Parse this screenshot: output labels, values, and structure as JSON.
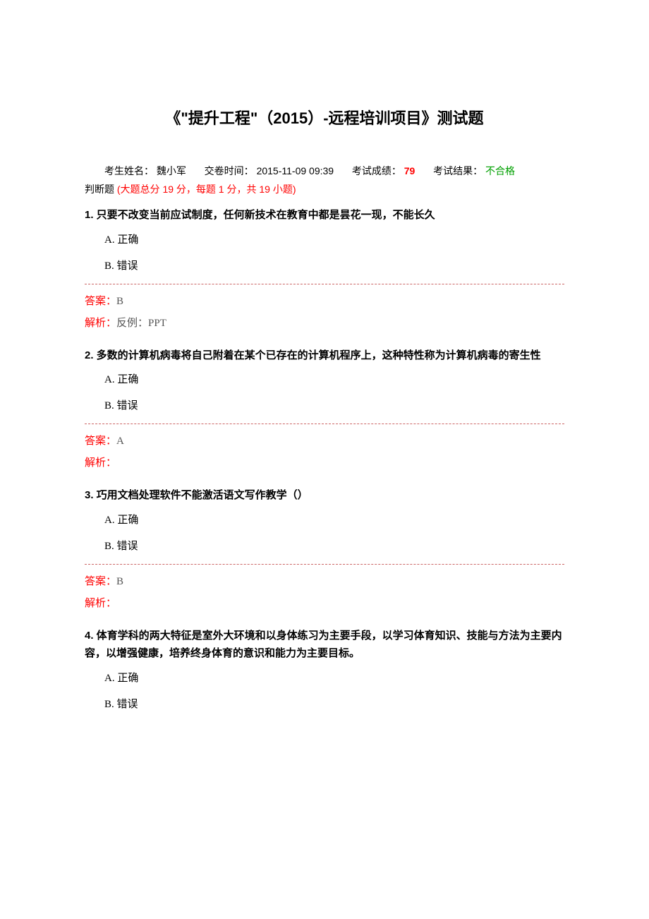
{
  "title": "《\"提升工程\"（2015）-远程培训项目》测试题",
  "meta": {
    "name_label": "考生姓名：",
    "name_value": "魏小军",
    "submit_label": "交卷时间：",
    "submit_value": "2015-11-09 09:39",
    "score_label": "考试成绩：",
    "score_value": "79",
    "result_label": "考试结果：",
    "result_value": "不合格"
  },
  "section": {
    "black": "判断题 ",
    "red": "(大题总分 19 分，每题 1 分，共 19 小题)"
  },
  "labels": {
    "answer": "答案：",
    "analysis": "解析："
  },
  "options": {
    "a": "A.  正确",
    "b": "B.  错误"
  },
  "questions": [
    {
      "text": "1. 只要不改变当前应试制度，任何新技术在教育中都是昙花一现，不能长久",
      "answer": "B",
      "analysis": "反例：PPT"
    },
    {
      "text": "2. 多数的计算机病毒将自己附着在某个已存在的计算机程序上，这种特性称为计算机病毒的寄生性",
      "answer": "A",
      "analysis": ""
    },
    {
      "text": "3. 巧用文档处理软件不能激活语文写作教学（）",
      "answer": "B",
      "analysis": ""
    },
    {
      "text": "4. 体育学科的两大特征是室外大环境和以身体练习为主要手段，以学习体育知识、技能与方法为主要内容，以增强健康，培养终身体育的意识和能力为主要目标。",
      "answer": null,
      "analysis": null
    }
  ],
  "colors": {
    "text": "#000000",
    "red": "#ff0000",
    "green": "#00a000",
    "divider": "#cc6666",
    "gray": "#555555",
    "background": "#ffffff"
  },
  "typography": {
    "title_fontsize": 22,
    "body_fontsize": 15,
    "meta_fontsize": 14,
    "font_family": "Microsoft YaHei, SimSun"
  }
}
